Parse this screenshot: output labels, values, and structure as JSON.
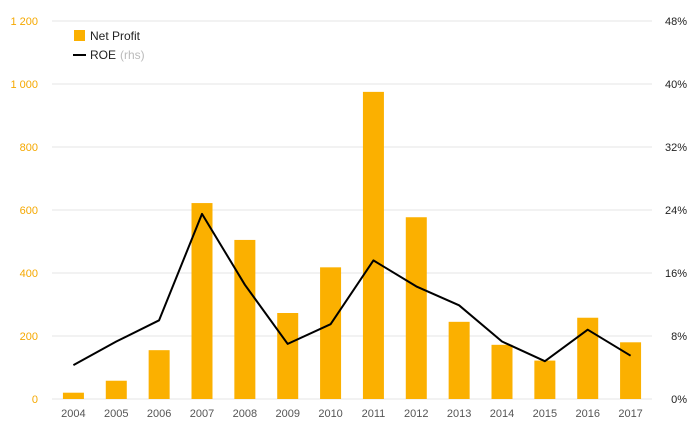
{
  "chart_data": {
    "type": "bar",
    "categories": [
      "2004",
      "2005",
      "2006",
      "2007",
      "2008",
      "2009",
      "2010",
      "2011",
      "2012",
      "2013",
      "2014",
      "2015",
      "2016",
      "2017"
    ],
    "series": [
      {
        "name": "Net Profit",
        "type": "bar",
        "axis": "left",
        "color": "#fbb000",
        "values": [
          20,
          58,
          155,
          622,
          505,
          273,
          418,
          975,
          577,
          245,
          172,
          122,
          258,
          180
        ]
      },
      {
        "name": "ROE",
        "name_suffix": "(rhs)",
        "type": "line",
        "axis": "right",
        "color": "#000000",
        "values": [
          4.3,
          7.3,
          10.0,
          23.5,
          14.5,
          7.0,
          9.5,
          17.6,
          14.3,
          11.9,
          7.3,
          4.8,
          8.8,
          5.5
        ]
      }
    ],
    "y_left": {
      "min": 0,
      "max": 1200,
      "ticks": [
        0,
        200,
        400,
        600,
        800,
        1000,
        1200
      ],
      "tick_labels": [
        "0",
        "200",
        "400",
        "600",
        "800",
        "1 000",
        "1 200"
      ]
    },
    "y_right": {
      "min": 0,
      "max": 48,
      "ticks": [
        0,
        8,
        16,
        24,
        32,
        40,
        48
      ],
      "tick_labels": [
        "0%",
        "8%",
        "16%",
        "24%",
        "32%",
        "40%",
        "48%"
      ]
    },
    "grid": true,
    "legend": {
      "position": "top-left",
      "items": [
        {
          "label": "Net Profit",
          "marker": "square"
        },
        {
          "label": "ROE",
          "suffix": "(rhs)",
          "marker": "line"
        }
      ]
    },
    "colors": {
      "bar": "#fbb000",
      "line": "#000000",
      "grid": "#e6e6e6",
      "left_axis_text": "#f5a800"
    }
  }
}
